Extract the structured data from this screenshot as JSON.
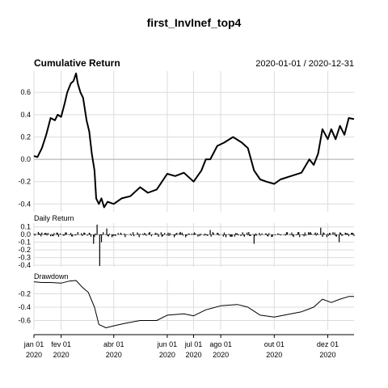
{
  "chart_data": {
    "type": "line",
    "title": "first_InvInef_top4",
    "panel_title": "Cumulative Return",
    "date_range": "2020-01-01 / 2020-12-31",
    "colors": {
      "line": "#000000",
      "grid": "#dcdcdc",
      "zero": "#a6a6a6"
    },
    "x_ticks": [
      {
        "date": "2020-01-01",
        "month": "jan 01",
        "year": "2020"
      },
      {
        "date": "2020-02-01",
        "month": "fev 01",
        "year": "2020"
      },
      {
        "date": "2020-04-01",
        "month": "abr 01",
        "year": "2020"
      },
      {
        "date": "2020-06-01",
        "month": "jun 01",
        "year": "2020"
      },
      {
        "date": "2020-07-01",
        "month": "jul 01",
        "year": "2020"
      },
      {
        "date": "2020-08-01",
        "month": "ago 01",
        "year": "2020"
      },
      {
        "date": "2020-10-01",
        "month": "out 01",
        "year": "2020"
      },
      {
        "date": "2020-12-01",
        "month": "dez 01",
        "year": "2020"
      }
    ],
    "x_range": [
      "2020-01-01",
      "2020-12-31"
    ],
    "cumulative": {
      "ylim": [
        -0.47,
        0.79
      ],
      "yticks": [
        -0.4,
        -0.2,
        0.0,
        0.2,
        0.4,
        0.6
      ],
      "ytick_labels": [
        "-0.4",
        "-0.2",
        "0.0",
        "0.2",
        "0.4",
        "0.6"
      ],
      "points": [
        [
          "2020-01-01",
          0.03
        ],
        [
          "2020-01-05",
          0.02
        ],
        [
          "2020-01-10",
          0.1
        ],
        [
          "2020-01-15",
          0.22
        ],
        [
          "2020-01-20",
          0.37
        ],
        [
          "2020-01-25",
          0.35
        ],
        [
          "2020-01-28",
          0.4
        ],
        [
          "2020-02-01",
          0.38
        ],
        [
          "2020-02-05",
          0.5
        ],
        [
          "2020-02-08",
          0.6
        ],
        [
          "2020-02-12",
          0.68
        ],
        [
          "2020-02-15",
          0.7
        ],
        [
          "2020-02-18",
          0.77
        ],
        [
          "2020-02-20",
          0.68
        ],
        [
          "2020-02-23",
          0.6
        ],
        [
          "2020-02-26",
          0.55
        ],
        [
          "2020-03-01",
          0.35
        ],
        [
          "2020-03-04",
          0.25
        ],
        [
          "2020-03-07",
          0.05
        ],
        [
          "2020-03-10",
          -0.1
        ],
        [
          "2020-03-12",
          -0.35
        ],
        [
          "2020-03-15",
          -0.4
        ],
        [
          "2020-03-18",
          -0.35
        ],
        [
          "2020-03-21",
          -0.43
        ],
        [
          "2020-03-25",
          -0.38
        ],
        [
          "2020-04-01",
          -0.4
        ],
        [
          "2020-04-10",
          -0.35
        ],
        [
          "2020-04-20",
          -0.33
        ],
        [
          "2020-05-01",
          -0.25
        ],
        [
          "2020-05-10",
          -0.3
        ],
        [
          "2020-05-20",
          -0.27
        ],
        [
          "2020-06-01",
          -0.13
        ],
        [
          "2020-06-10",
          -0.15
        ],
        [
          "2020-06-20",
          -0.12
        ],
        [
          "2020-07-01",
          -0.2
        ],
        [
          "2020-07-10",
          -0.1
        ],
        [
          "2020-07-15",
          0.0
        ],
        [
          "2020-07-20",
          0.0
        ],
        [
          "2020-07-28",
          0.12
        ],
        [
          "2020-08-05",
          0.15
        ],
        [
          "2020-08-15",
          0.2
        ],
        [
          "2020-08-25",
          0.15
        ],
        [
          "2020-09-01",
          0.1
        ],
        [
          "2020-09-08",
          -0.1
        ],
        [
          "2020-09-15",
          -0.18
        ],
        [
          "2020-09-22",
          -0.2
        ],
        [
          "2020-10-01",
          -0.22
        ],
        [
          "2020-10-08",
          -0.18
        ],
        [
          "2020-10-20",
          -0.15
        ],
        [
          "2020-11-01",
          -0.12
        ],
        [
          "2020-11-10",
          0.0
        ],
        [
          "2020-11-15",
          -0.05
        ],
        [
          "2020-11-20",
          0.05
        ],
        [
          "2020-11-25",
          0.27
        ],
        [
          "2020-12-01",
          0.18
        ],
        [
          "2020-12-05",
          0.27
        ],
        [
          "2020-12-10",
          0.18
        ],
        [
          "2020-12-15",
          0.3
        ],
        [
          "2020-12-20",
          0.22
        ],
        [
          "2020-12-25",
          0.37
        ],
        [
          "2020-12-31",
          0.36
        ]
      ]
    },
    "daily": {
      "title": "Daily Return",
      "ylim": [
        -0.42,
        0.15
      ],
      "yticks": [
        0.1,
        0.0,
        -0.1,
        -0.2,
        -0.3,
        -0.4
      ],
      "ytick_labels": [
        "0.1",
        "0.0",
        "-0.1",
        "-0.2",
        "-0.3",
        "-0.4"
      ],
      "seed": 12345,
      "typical_abs": 0.035,
      "spikes": [
        [
          "2020-03-16",
          -0.41
        ],
        [
          "2020-03-13",
          0.13
        ],
        [
          "2020-03-09",
          -0.12
        ],
        [
          "2020-03-18",
          -0.1
        ],
        [
          "2020-03-24",
          0.08
        ],
        [
          "2020-07-20",
          0.06
        ],
        [
          "2020-09-08",
          -0.12
        ],
        [
          "2020-12-14",
          -0.1
        ],
        [
          "2020-11-23",
          0.09
        ]
      ]
    },
    "drawdown": {
      "title": "Drawdown",
      "ylim": [
        -0.74,
        0.0
      ],
      "yticks": [
        -0.2,
        -0.4,
        -0.6
      ],
      "ytick_labels": [
        "-0.2",
        "-0.4",
        "-0.6"
      ],
      "points": [
        [
          "2020-01-01",
          -0.02
        ],
        [
          "2020-01-10",
          -0.03
        ],
        [
          "2020-01-20",
          -0.03
        ],
        [
          "2020-02-01",
          -0.04
        ],
        [
          "2020-02-10",
          -0.01
        ],
        [
          "2020-02-18",
          0.0
        ],
        [
          "2020-02-25",
          -0.1
        ],
        [
          "2020-03-03",
          -0.18
        ],
        [
          "2020-03-10",
          -0.4
        ],
        [
          "2020-03-15",
          -0.66
        ],
        [
          "2020-03-23",
          -0.71
        ],
        [
          "2020-04-01",
          -0.68
        ],
        [
          "2020-04-15",
          -0.64
        ],
        [
          "2020-05-01",
          -0.6
        ],
        [
          "2020-05-20",
          -0.6
        ],
        [
          "2020-06-01",
          -0.52
        ],
        [
          "2020-06-20",
          -0.5
        ],
        [
          "2020-07-01",
          -0.53
        ],
        [
          "2020-07-15",
          -0.44
        ],
        [
          "2020-08-01",
          -0.38
        ],
        [
          "2020-08-20",
          -0.36
        ],
        [
          "2020-09-01",
          -0.4
        ],
        [
          "2020-09-15",
          -0.52
        ],
        [
          "2020-10-01",
          -0.55
        ],
        [
          "2020-10-20",
          -0.5
        ],
        [
          "2020-11-01",
          -0.47
        ],
        [
          "2020-11-15",
          -0.4
        ],
        [
          "2020-11-25",
          -0.28
        ],
        [
          "2020-12-05",
          -0.33
        ],
        [
          "2020-12-15",
          -0.28
        ],
        [
          "2020-12-25",
          -0.24
        ],
        [
          "2020-12-31",
          -0.24
        ]
      ]
    }
  }
}
